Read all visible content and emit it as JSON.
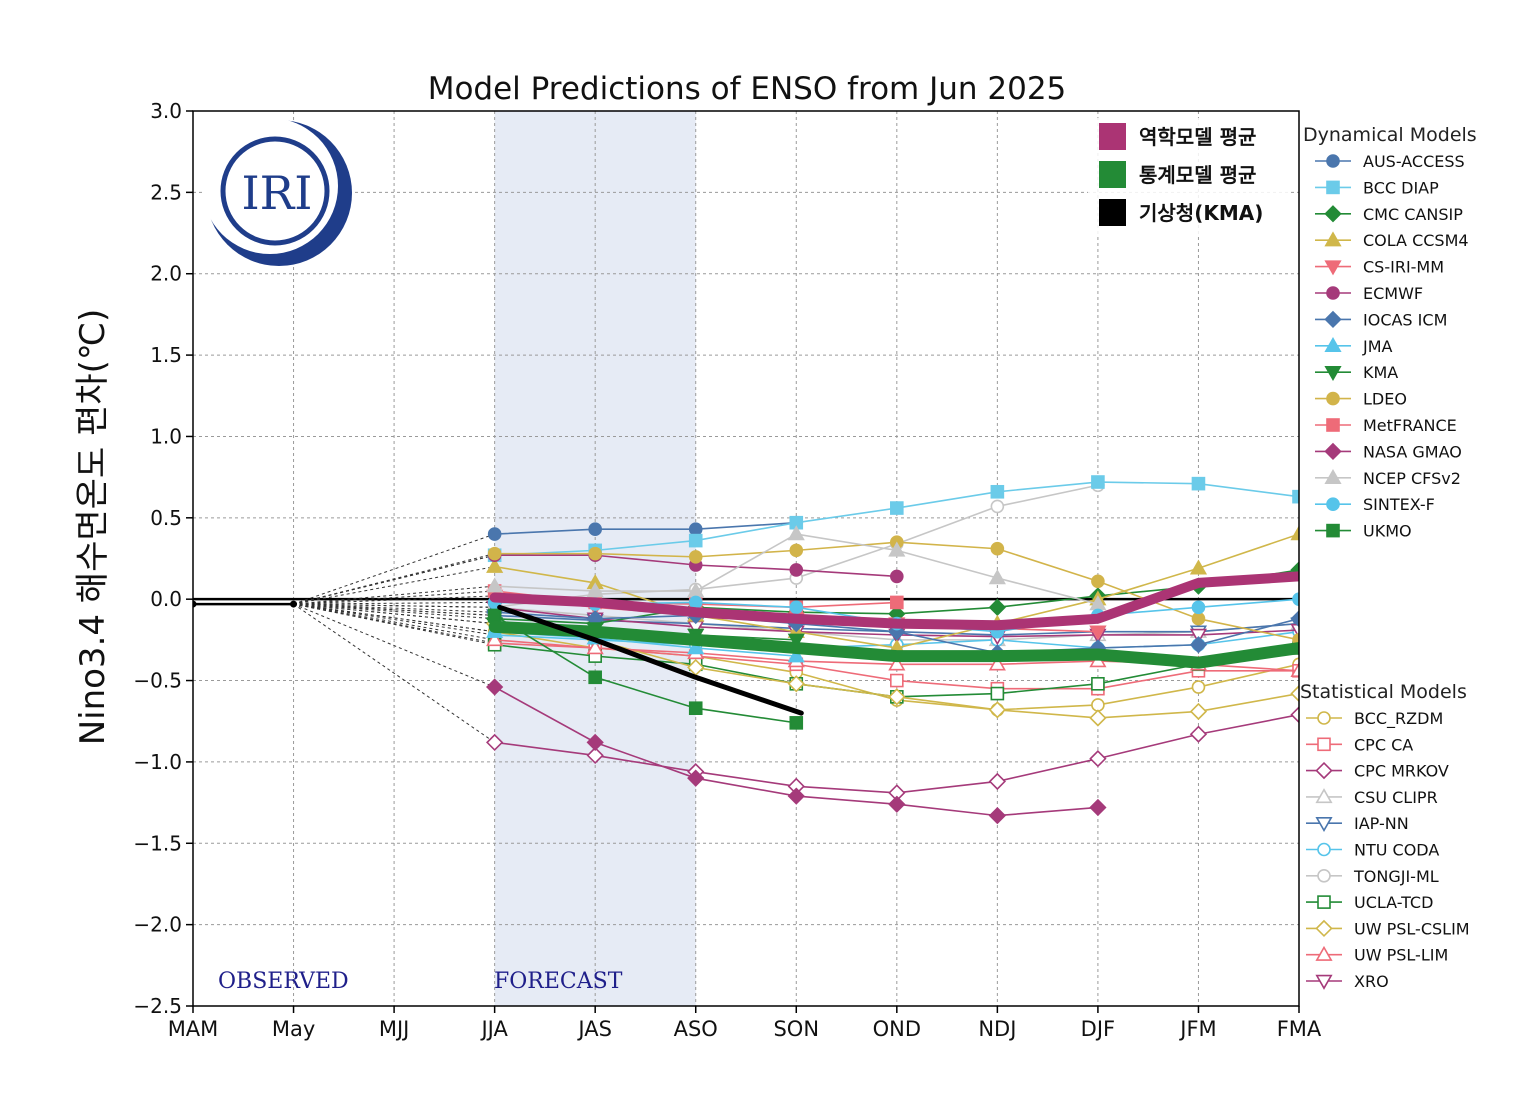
{
  "chart_data": {
    "type": "line",
    "title": "Model Predictions of ENSO from Jun 2025",
    "ylabel": "Nino3.4 해수면온도 편차(℃)",
    "xlabel": "",
    "categories": [
      "MAM",
      "May",
      "MJJ",
      "JJA",
      "JAS",
      "ASO",
      "SON",
      "OND",
      "NDJ",
      "DJF",
      "JFM",
      "FMA"
    ],
    "ylim": [
      -2.5,
      3.0
    ],
    "yticks": [
      3.0,
      2.5,
      2.0,
      1.5,
      1.0,
      0.5,
      0.0,
      -0.5,
      -1.0,
      -1.5,
      -2.0,
      -2.5
    ],
    "ytick_labels": [
      "3.0",
      "2.5",
      "2.0",
      "1.5",
      "1.0",
      "0.5",
      "0.0",
      "−0.5",
      "−1.0",
      "−1.5",
      "−2.0",
      "−2.5"
    ],
    "grid": true,
    "observed_label": "OBSERVED",
    "forecast_label": "FORECAST",
    "forecast_shade": [
      "JJA",
      "ASO"
    ],
    "logo_text": "IRI",
    "observed": [
      -0.03,
      -0.03
    ],
    "legend_headers": {
      "dynamical": "Dynamical Models",
      "statistical": "Statistical Models"
    },
    "averages_legend": [
      {
        "key": "dyn_avg",
        "label": "역학모델 평균",
        "color": "#ab3474"
      },
      {
        "key": "stat_avg",
        "label": "통계모델 평균",
        "color": "#238b36"
      },
      {
        "key": "kma",
        "label": "기상청(KMA)",
        "color": "#000000"
      }
    ],
    "averages": {
      "dyn_avg": {
        "color": "#ab3474",
        "start": 3,
        "values": [
          0.01,
          -0.02,
          -0.08,
          -0.12,
          -0.15,
          -0.16,
          -0.12,
          0.1,
          0.14
        ]
      },
      "stat_avg": {
        "color": "#238b36",
        "start": 3,
        "values": [
          -0.17,
          -0.2,
          -0.25,
          -0.3,
          -0.35,
          -0.35,
          -0.34,
          -0.39,
          -0.3
        ]
      },
      "kma": {
        "color": "#000000",
        "start": 3,
        "values": [
          -0.05,
          -0.25,
          -0.48,
          -0.7
        ],
        "partial_start": 0.05,
        "partial_end": 0.05
      }
    },
    "series_dynamical": [
      {
        "name": "AUS-ACCESS",
        "color": "#4a76ad",
        "marker": "circle",
        "filled": true,
        "values": [
          0.4,
          0.43,
          0.43,
          0.47
        ]
      },
      {
        "name": "BCC DIAP",
        "color": "#6bcbe9",
        "marker": "square",
        "filled": true,
        "values": [
          0.27,
          0.3,
          0.36,
          0.47,
          0.56,
          0.66,
          0.72,
          0.71,
          0.63
        ]
      },
      {
        "name": "CMC CANSIP",
        "color": "#238b36",
        "marker": "diamond",
        "filled": true,
        "values": [
          -0.12,
          -0.15,
          -0.05,
          -0.08,
          -0.09,
          -0.05,
          0.02,
          0.08,
          0.18
        ]
      },
      {
        "name": "COLA CCSM4",
        "color": "#d0b74a",
        "marker": "triangle-up",
        "filled": true,
        "values": [
          0.2,
          0.1,
          -0.1,
          -0.2,
          -0.3,
          -0.15,
          0.0,
          0.19,
          0.4
        ]
      },
      {
        "name": "CS-IRI-MM",
        "color": "#ee6b78",
        "marker": "triangle-down",
        "filled": true,
        "values": [
          0.02,
          -0.05,
          -0.1,
          -0.12,
          -0.15,
          -0.18,
          -0.2
        ]
      },
      {
        "name": "ECMWF",
        "color": "#a53a7a",
        "marker": "circle",
        "filled": true,
        "values": [
          0.27,
          0.27,
          0.21,
          0.18,
          0.14
        ]
      },
      {
        "name": "IOCAS ICM",
        "color": "#4a76ad",
        "marker": "diamond",
        "filled": true,
        "values": [
          -0.08,
          -0.12,
          -0.1,
          -0.15,
          -0.2,
          -0.33,
          -0.3,
          -0.28,
          -0.12
        ]
      },
      {
        "name": "JMA",
        "color": "#56c4ea",
        "marker": "triangle-up",
        "filled": true,
        "values": [
          -0.2,
          -0.24,
          -0.3,
          -0.35
        ]
      },
      {
        "name": "KMA",
        "color": "#238b36",
        "marker": "triangle-down",
        "filled": true,
        "values": [
          -0.15,
          -0.18,
          -0.22,
          -0.25
        ]
      },
      {
        "name": "LDEO",
        "color": "#d2b44a",
        "marker": "circle",
        "filled": true,
        "values": [
          0.28,
          0.28,
          0.26,
          0.3,
          0.35,
          0.31,
          0.11,
          -0.12,
          -0.25
        ]
      },
      {
        "name": "MetFRANCE",
        "color": "#ee6b78",
        "marker": "square",
        "filled": true,
        "values": [
          0.05,
          -0.02,
          -0.03,
          -0.05,
          -0.02
        ]
      },
      {
        "name": "NASA GMAO",
        "color": "#a53a7a",
        "marker": "diamond",
        "filled": true,
        "values": [
          -0.54,
          -0.88,
          -1.1,
          -1.21,
          -1.26,
          -1.33,
          -1.28
        ]
      },
      {
        "name": "NCEP CFSv2",
        "color": "#c6c6c6",
        "marker": "triangle-up",
        "filled": true,
        "values": [
          0.08,
          0.05,
          0.05,
          0.4,
          0.3,
          0.13,
          -0.03
        ]
      },
      {
        "name": "SINTEX-F",
        "color": "#56c4ea",
        "marker": "circle",
        "filled": true,
        "values": [
          -0.02,
          -0.03,
          -0.02,
          -0.05,
          -0.15,
          -0.2,
          -0.1,
          -0.05,
          0.0
        ]
      },
      {
        "name": "UKMO",
        "color": "#238b36",
        "marker": "square",
        "filled": true,
        "values": [
          -0.1,
          -0.48,
          -0.67,
          -0.76
        ]
      }
    ],
    "series_statistical": [
      {
        "name": "BCC_RZDM",
        "color": "#d0b74a",
        "marker": "circle",
        "filled": false,
        "values": [
          -0.2,
          -0.3,
          -0.35,
          -0.45,
          -0.62,
          -0.68,
          -0.65,
          -0.54,
          -0.4
        ]
      },
      {
        "name": "CPC CA",
        "color": "#ee6b78",
        "marker": "square",
        "filled": false,
        "values": [
          -0.27,
          -0.3,
          -0.35,
          -0.4,
          -0.5,
          -0.55,
          -0.55,
          -0.44,
          -0.44
        ]
      },
      {
        "name": "CPC MRKOV",
        "color": "#a53a7a",
        "marker": "diamond",
        "filled": false,
        "values": [
          -0.88,
          -0.96,
          -1.06,
          -1.15,
          -1.19,
          -1.12,
          -0.98,
          -0.83,
          -0.71
        ]
      },
      {
        "name": "CSU CLIPR",
        "color": "#c6c6c6",
        "marker": "triangle-up",
        "filled": false,
        "values": [
          -0.05,
          -0.1,
          -0.15,
          -0.2,
          -0.25,
          -0.25,
          -0.22,
          -0.2,
          -0.15
        ]
      },
      {
        "name": "IAP-NN",
        "color": "#4a76ad",
        "marker": "triangle-down",
        "filled": false,
        "values": [
          -0.1,
          -0.13,
          -0.15,
          -0.18,
          -0.2,
          -0.22,
          -0.2,
          -0.2,
          -0.15
        ]
      },
      {
        "name": "NTU CODA",
        "color": "#56c4ea",
        "marker": "circle",
        "filled": false,
        "values": [
          -0.22,
          -0.25,
          -0.28,
          -0.3,
          -0.28,
          -0.25,
          -0.3,
          -0.28,
          -0.2
        ]
      },
      {
        "name": "TONGJI-ML",
        "color": "#c6c6c6",
        "marker": "circle",
        "filled": false,
        "values": [
          -0.05,
          0.03,
          0.06,
          0.13,
          0.34,
          0.57,
          0.7
        ]
      },
      {
        "name": "UCLA-TCD",
        "color": "#238b36",
        "marker": "square",
        "filled": false,
        "values": [
          -0.28,
          -0.35,
          -0.4,
          -0.52,
          -0.6,
          -0.58,
          -0.52,
          -0.4,
          -0.3
        ]
      },
      {
        "name": "UW PSL-CSLIM",
        "color": "#d0b74a",
        "marker": "diamond",
        "filled": false,
        "values": [
          -0.15,
          -0.25,
          -0.42,
          -0.52,
          -0.6,
          -0.68,
          -0.73,
          -0.69,
          -0.58
        ]
      },
      {
        "name": "UW PSL-LIM",
        "color": "#ee6b78",
        "marker": "triangle-up",
        "filled": false,
        "values": [
          -0.25,
          -0.3,
          -0.33,
          -0.38,
          -0.4,
          -0.4,
          -0.38,
          -0.4,
          -0.44
        ]
      },
      {
        "name": "XRO",
        "color": "#a53a7a",
        "marker": "triangle-down",
        "filled": false,
        "values": [
          -0.05,
          -0.12,
          -0.17,
          -0.2,
          -0.22,
          -0.23,
          -0.22,
          -0.22,
          -0.19
        ]
      }
    ]
  }
}
